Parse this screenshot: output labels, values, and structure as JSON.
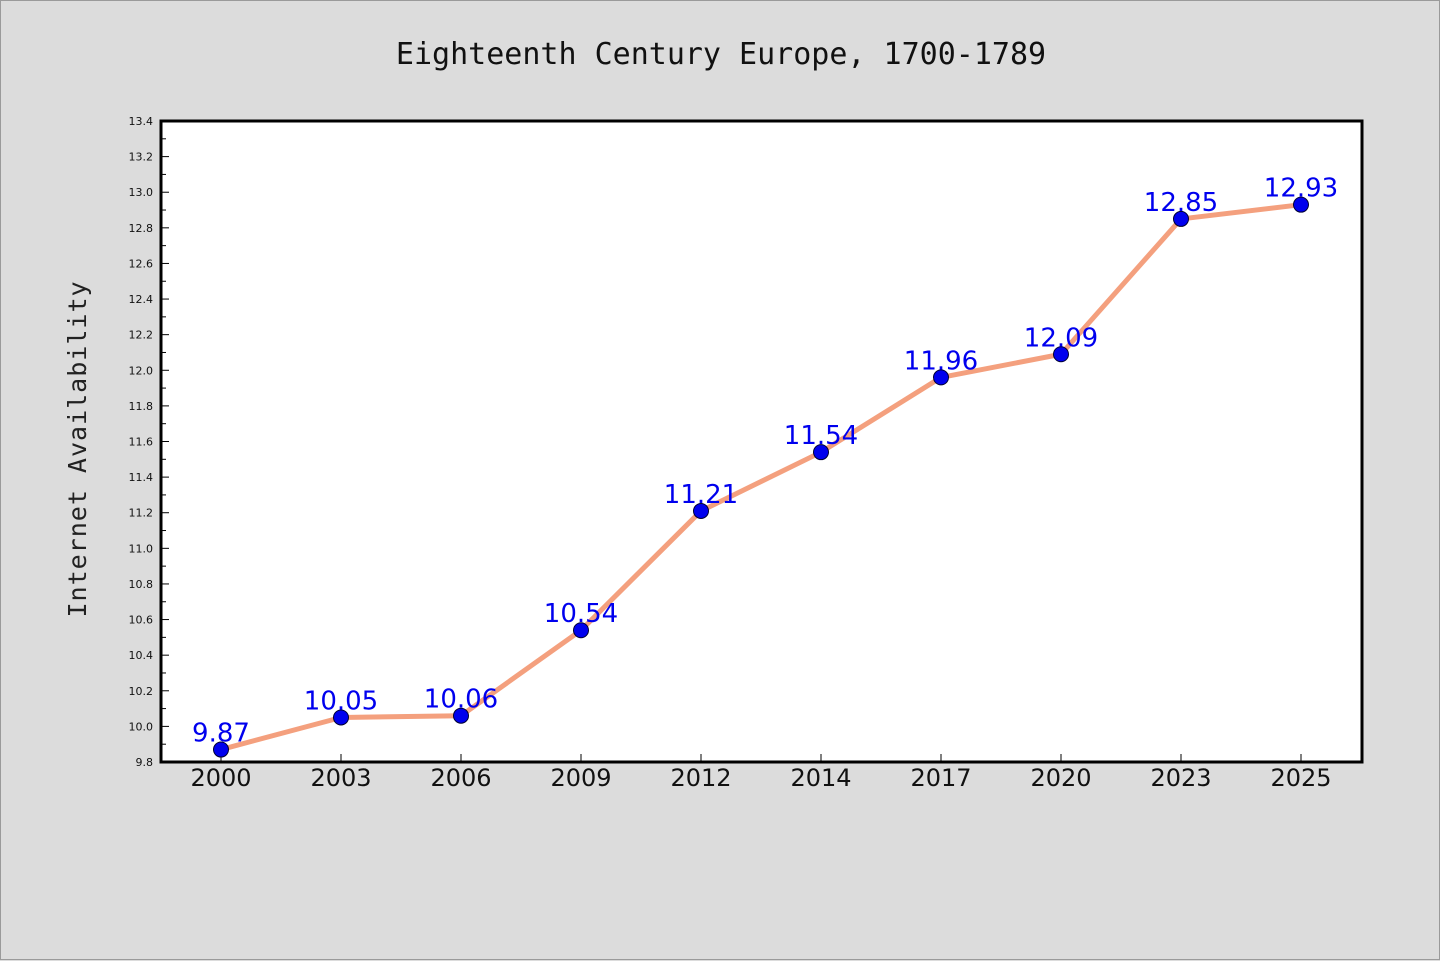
{
  "chart_data": {
    "type": "line",
    "title": "Eighteenth Century Europe, 1700-1789",
    "xlabel": "",
    "ylabel": "Internet Availability",
    "categories": [
      "2000",
      "2003",
      "2006",
      "2009",
      "2012",
      "2014",
      "2017",
      "2020",
      "2023",
      "2025"
    ],
    "series": [
      {
        "values": [
          9.87,
          10.05,
          10.06,
          10.54,
          11.21,
          11.54,
          11.96,
          12.09,
          12.85,
          12.93
        ],
        "labels": [
          "9.87",
          "10.05",
          "10.06",
          "10.54",
          "11.21",
          "11.54",
          "11.96",
          "12.09",
          "12.85",
          "12.93"
        ]
      }
    ],
    "ylim": [
      9.8,
      13.4
    ],
    "yticks": [
      "9.8",
      "10.0",
      "10.2",
      "10.4",
      "10.6",
      "10.8",
      "11.0",
      "11.2",
      "11.4",
      "11.6",
      "11.8",
      "12.0",
      "12.2",
      "12.4",
      "12.6",
      "12.8",
      "13.0",
      "13.2",
      "13.4"
    ],
    "grid": false,
    "legend": "none",
    "colors": {
      "background": "#dcdcdc",
      "plot_background": "#ffffff",
      "line": "#f4a07e",
      "marker": "#0000ee",
      "data_label": "#0000ee"
    }
  }
}
